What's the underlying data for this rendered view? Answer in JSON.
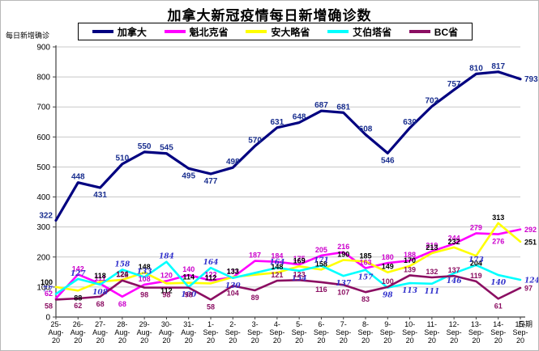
{
  "title": "加拿大新冠疫情每日新增确诊数",
  "y_axis_title": "每日新增确诊",
  "x_axis_title": "日期",
  "legend": {
    "items": [
      "加拿大",
      "魁北克省",
      "安大略省",
      "艾伯塔省",
      "BC省"
    ]
  },
  "chart_data": {
    "type": "line",
    "title": "加拿大新冠疫情每日新增确诊数",
    "xlabel": "日期",
    "ylabel": "每日新增确诊",
    "ylim": [
      0,
      900
    ],
    "ytick_step": 100,
    "grid": true,
    "legend_position": "top",
    "gridline_color": "#c8c8c8",
    "axis_color": "#404040",
    "tick_label_color": "#000000",
    "categories": [
      "25-Aug-20",
      "26-Aug-20",
      "27-Aug-20",
      "28-Aug-20",
      "29-Aug-20",
      "30-Aug-20",
      "31-Aug-20",
      "1-Sep-20",
      "2-Sep-20",
      "3-Sep-20",
      "4-Sep-20",
      "5-Sep-20",
      "6-Sep-20",
      "7-Sep-20",
      "8-Sep-20",
      "9-Sep-20",
      "10-Sep-20",
      "11-Sep-20",
      "12-Sep-20",
      "13-Sep-20",
      "14-Sep-20",
      "15-Sep-20"
    ],
    "series": [
      {
        "name": "加拿大",
        "key": "canada",
        "color": "#000080",
        "label_color": "#1a2f8f",
        "line_width": 3.2,
        "italic_labels": false,
        "values": [
          322,
          448,
          431,
          510,
          550,
          545,
          495,
          477,
          498,
          570,
          631,
          648,
          687,
          681,
          608,
          546,
          630,
          702,
          757,
          810,
          817,
          793
        ],
        "labels": [
          "322",
          "448",
          "431",
          "510",
          "550",
          "545",
          "495",
          "477",
          "498",
          "570",
          "631",
          "648",
          "687",
          "681",
          "608",
          "546",
          "630",
          "702",
          "757",
          "810",
          "817",
          "793"
        ],
        "label_below": [
          2,
          6,
          7,
          15
        ]
      },
      {
        "name": "魁北克省",
        "key": "quebec",
        "color": "#ff00ff",
        "label_color": "#cc00cc",
        "line_width": 2.6,
        "italic_labels": false,
        "values": [
          62,
          142,
          111,
          68,
          108,
          120,
          140,
          122,
          132,
          187,
          184,
          175,
          205,
          216,
          163,
          180,
          188,
          219,
          244,
          279,
          276,
          292
        ],
        "labels": [
          "62",
          "142",
          "111",
          "68",
          "108",
          "120",
          "140",
          "122",
          "132",
          "187",
          "184",
          "175",
          "205",
          "216",
          "163",
          "180",
          "188",
          "219",
          "244",
          "279",
          "276",
          "292"
        ],
        "label_below": [
          3,
          20
        ]
      },
      {
        "name": "安大略省",
        "key": "ontario",
        "color": "#ffff00",
        "label_color": "#000000",
        "line_width": 2.6,
        "italic_labels": false,
        "values": [
          100,
          88,
          118,
          124,
          148,
          112,
          114,
          112,
          133,
          141,
          148,
          169,
          158,
          190,
          185,
          149,
          170,
          213,
          232,
          204,
          313,
          251
        ],
        "labels": [
          "100",
          "88",
          "118",
          "124",
          "148",
          "112",
          "114",
          "112",
          "133",
          "",
          "148",
          "169",
          "158",
          "190",
          "185",
          "149",
          "170",
          "213",
          "232",
          "204",
          "313",
          "251"
        ],
        "label_below": [
          1,
          5,
          19
        ]
      },
      {
        "name": "艾伯塔省",
        "key": "alberta",
        "color": "#00ffff",
        "label_color": "#3333cc",
        "line_width": 2.6,
        "italic_labels": true,
        "values": [
          77,
          127,
          108,
          158,
          133,
          184,
          100,
          164,
          130,
          147,
          164,
          154,
          171,
          137,
          157,
          98,
          113,
          111,
          146,
          173,
          140,
          124
        ],
        "labels": [
          "77",
          "127",
          "108",
          "158",
          "133",
          "184",
          "100",
          "164",
          "130",
          "",
          "164",
          "154",
          "171",
          "137",
          "157",
          "98",
          "113",
          "111",
          "146",
          "173",
          "140",
          "124"
        ],
        "label_below": [
          2,
          6,
          8,
          11,
          13,
          14,
          15,
          16,
          17,
          18,
          20
        ]
      },
      {
        "name": "BC省",
        "key": "bc",
        "color": "#8b0e62",
        "label_color": "#8b0e62",
        "line_width": 2.6,
        "italic_labels": false,
        "values": [
          58,
          62,
          68,
          122,
          98,
          98,
          98,
          58,
          104,
          89,
          121,
          123,
          116,
          107,
          83,
          100,
          139,
          132,
          137,
          119,
          61,
          97
        ],
        "labels": [
          "58",
          "62",
          "68",
          "122",
          "98",
          "98",
          "98",
          "58",
          "104",
          "89",
          "121",
          "123",
          "116",
          "107",
          "83",
          "100",
          "139",
          "132",
          "137",
          "119",
          "61",
          "97"
        ],
        "label_below": [
          0,
          1,
          2,
          4,
          5,
          6,
          7,
          8,
          9,
          12,
          13,
          14,
          20
        ]
      }
    ]
  }
}
